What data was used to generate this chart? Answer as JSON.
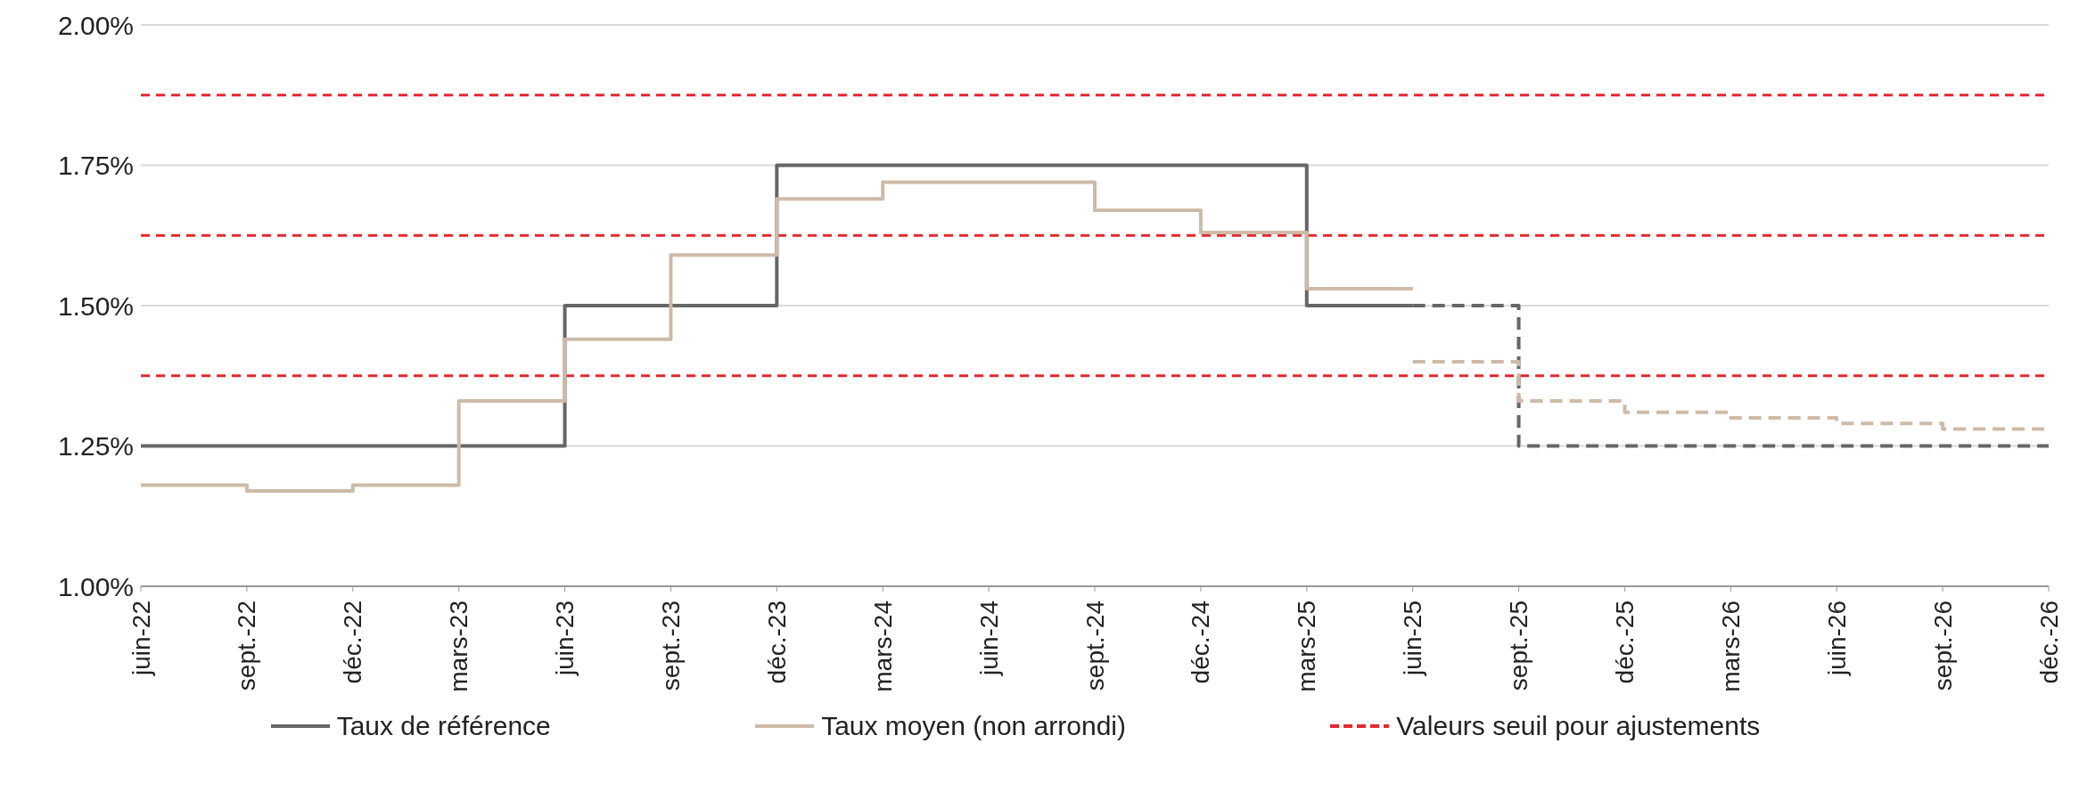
{
  "chart_data": {
    "type": "step",
    "categories": [
      "juin-22",
      "sept.-22",
      "déc.-22",
      "mars-23",
      "juin-23",
      "sept.-23",
      "déc.-23",
      "mars-24",
      "juin-24",
      "sept.-24",
      "déc.-24",
      "mars-25",
      "juin-25",
      "sept.-25",
      "déc.-25",
      "mars-26",
      "juin-26",
      "sept.-26",
      "déc.-26"
    ],
    "series": [
      {
        "name": "Taux de référence",
        "color": "#666666",
        "line_style": "solid",
        "values": [
          1.25,
          1.25,
          1.25,
          1.25,
          1.5,
          1.5,
          1.75,
          1.75,
          1.75,
          1.75,
          1.75,
          1.5,
          1.5,
          null,
          null,
          null,
          null,
          null,
          null
        ]
      },
      {
        "name": "Taux moyen (non arrondi)",
        "color": "#cdbba7",
        "line_style": "solid",
        "values": [
          1.18,
          1.17,
          1.18,
          1.33,
          1.44,
          1.59,
          1.69,
          1.72,
          1.72,
          1.67,
          1.63,
          1.53,
          1.53,
          null,
          null,
          null,
          null,
          null,
          null
        ]
      },
      {
        "color": "#666666",
        "line_style": "dashed",
        "values": [
          null,
          null,
          null,
          null,
          null,
          null,
          null,
          null,
          null,
          null,
          null,
          null,
          1.5,
          1.25,
          1.25,
          1.25,
          1.25,
          1.25,
          1.25
        ]
      },
      {
        "color": "#cdbba7",
        "line_style": "dashed",
        "values": [
          null,
          null,
          null,
          null,
          null,
          null,
          null,
          null,
          null,
          null,
          null,
          null,
          1.4,
          1.33,
          1.31,
          1.3,
          1.29,
          1.28,
          1.28
        ]
      }
    ],
    "ref_lines": [
      {
        "axis": "y",
        "value": 1.875,
        "label": "Valeurs seuil pour ajustements",
        "color": "#e8262b",
        "line_style": "dashed"
      },
      {
        "axis": "y",
        "value": 1.625,
        "color": "#e8262b",
        "line_style": "dashed"
      },
      {
        "axis": "y",
        "value": 1.375,
        "color": "#e8262b",
        "line_style": "dashed"
      }
    ],
    "ylim": [
      1,
      2
    ],
    "yticks": [
      {
        "value": 1,
        "label": "1.00%"
      },
      {
        "value": 1.25,
        "label": "1.25%"
      },
      {
        "value": 1.5,
        "label": "1.50%"
      },
      {
        "value": 1.75,
        "label": "1.75%"
      },
      {
        "value": 2,
        "label": "2.00%"
      }
    ],
    "grid": "y",
    "legend": "bottom"
  }
}
